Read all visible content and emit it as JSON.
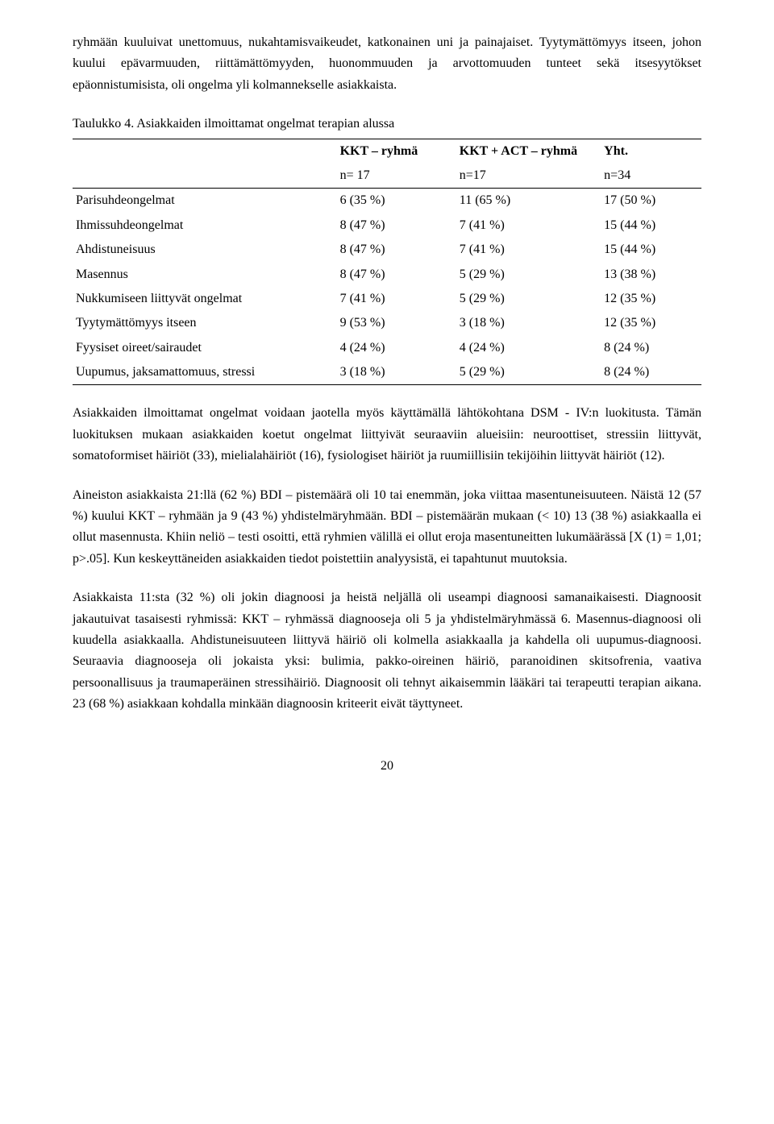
{
  "para1": "ryhmään kuuluivat unettomuus, nukahtamisvaikeudet, katkonainen uni ja painajaiset. Tyytymättömyys itseen, johon kuului epävarmuuden, riittämättömyyden, huonommuuden ja arvottomuuden tunteet sekä itsesyytökset epäonnistumisista, oli ongelma yli kolmannekselle asiakkaista.",
  "table_title": "Taulukko 4. Asiakkaiden ilmoittamat ongelmat terapian alussa",
  "table": {
    "head1": {
      "c1": "",
      "c2": "KKT – ryhmä",
      "c3": "KKT + ACT – ryhmä",
      "c4": "Yht."
    },
    "head2": {
      "c1": "",
      "c2": "n= 17",
      "c3": "n=17",
      "c4": "n=34"
    },
    "rows": [
      {
        "label": "Parisuhdeongelmat",
        "g1": "6 (35 %)",
        "g2": "11 (65 %)",
        "tot": "17 (50 %)"
      },
      {
        "label": "Ihmissuhdeongelmat",
        "g1": "8 (47 %)",
        "g2": "7 (41 %)",
        "tot": "15 (44 %)"
      },
      {
        "label": "Ahdistuneisuus",
        "g1": "8 (47 %)",
        "g2": "7 (41 %)",
        "tot": "15 (44 %)"
      },
      {
        "label": "Masennus",
        "g1": "8 (47 %)",
        "g2": "5 (29 %)",
        "tot": "13 (38 %)"
      },
      {
        "label": "Nukkumiseen liittyvät ongelmat",
        "g1": "7 (41 %)",
        "g2": "5 (29 %)",
        "tot": "12 (35 %)"
      },
      {
        "label": "Tyytymättömyys itseen",
        "g1": "9 (53 %)",
        "g2": "3 (18 %)",
        "tot": "12 (35 %)"
      },
      {
        "label": "Fyysiset oireet/sairaudet",
        "g1": "4 (24 %)",
        "g2": "4 (24 %)",
        "tot": "8 (24 %)"
      },
      {
        "label": "Uupumus, jaksamattomuus, stressi",
        "g1": "3 (18 %)",
        "g2": "5 (29 %)",
        "tot": "8 (24 %)"
      }
    ]
  },
  "para2": "Asiakkaiden ilmoittamat ongelmat voidaan jaotella myös käyttämällä lähtökohtana DSM - IV:n luokitusta. Tämän luokituksen mukaan asiakkaiden koetut ongelmat liittyivät seuraaviin alueisiin: neuroottiset, stressiin liittyvät, somatoformiset häiriöt (33), mielialahäiriöt (16), fysiologiset häiriöt ja ruumiillisiin tekijöihin liittyvät häiriöt (12).",
  "para3": "Aineiston asiakkaista 21:llä (62 %) BDI – pistemäärä oli 10 tai enemmän, joka viittaa masentuneisuuteen. Näistä 12 (57 %) kuului KKT – ryhmään ja 9 (43 %) yhdistelmäryhmään. BDI – pistemäärän mukaan (< 10) 13 (38 %) asiakkaalla ei ollut masennusta. Khiin neliö – testi osoitti, että ryhmien välillä ei ollut eroja masentuneitten lukumäärässä [X (1) = 1,01; p>.05]. Kun keskeyttäneiden asiakkaiden tiedot poistettiin analyysistä, ei tapahtunut muutoksia.",
  "para4": "Asiakkaista 11:sta (32 %) oli jokin diagnoosi ja heistä neljällä oli useampi diagnoosi samanaikaisesti. Diagnoosit jakautuivat tasaisesti ryhmissä: KKT – ryhmässä diagnooseja oli 5 ja yhdistelmäryhmässä 6. Masennus-diagnoosi oli kuudella asiakkaalla. Ahdistuneisuuteen liittyvä häiriö oli kolmella asiakkaalla ja kahdella oli uupumus-diagnoosi. Seuraavia diagnooseja oli jokaista yksi: bulimia, pakko-oireinen häiriö, paranoidinen skitsofrenia, vaativa persoonallisuus ja traumaperäinen stressihäiriö. Diagnoosit oli tehnyt aikaisemmin lääkäri tai terapeutti terapian aikana. 23 (68 %) asiakkaan kohdalla minkään diagnoosin kriteerit eivät täyttyneet.",
  "page_num": "20"
}
